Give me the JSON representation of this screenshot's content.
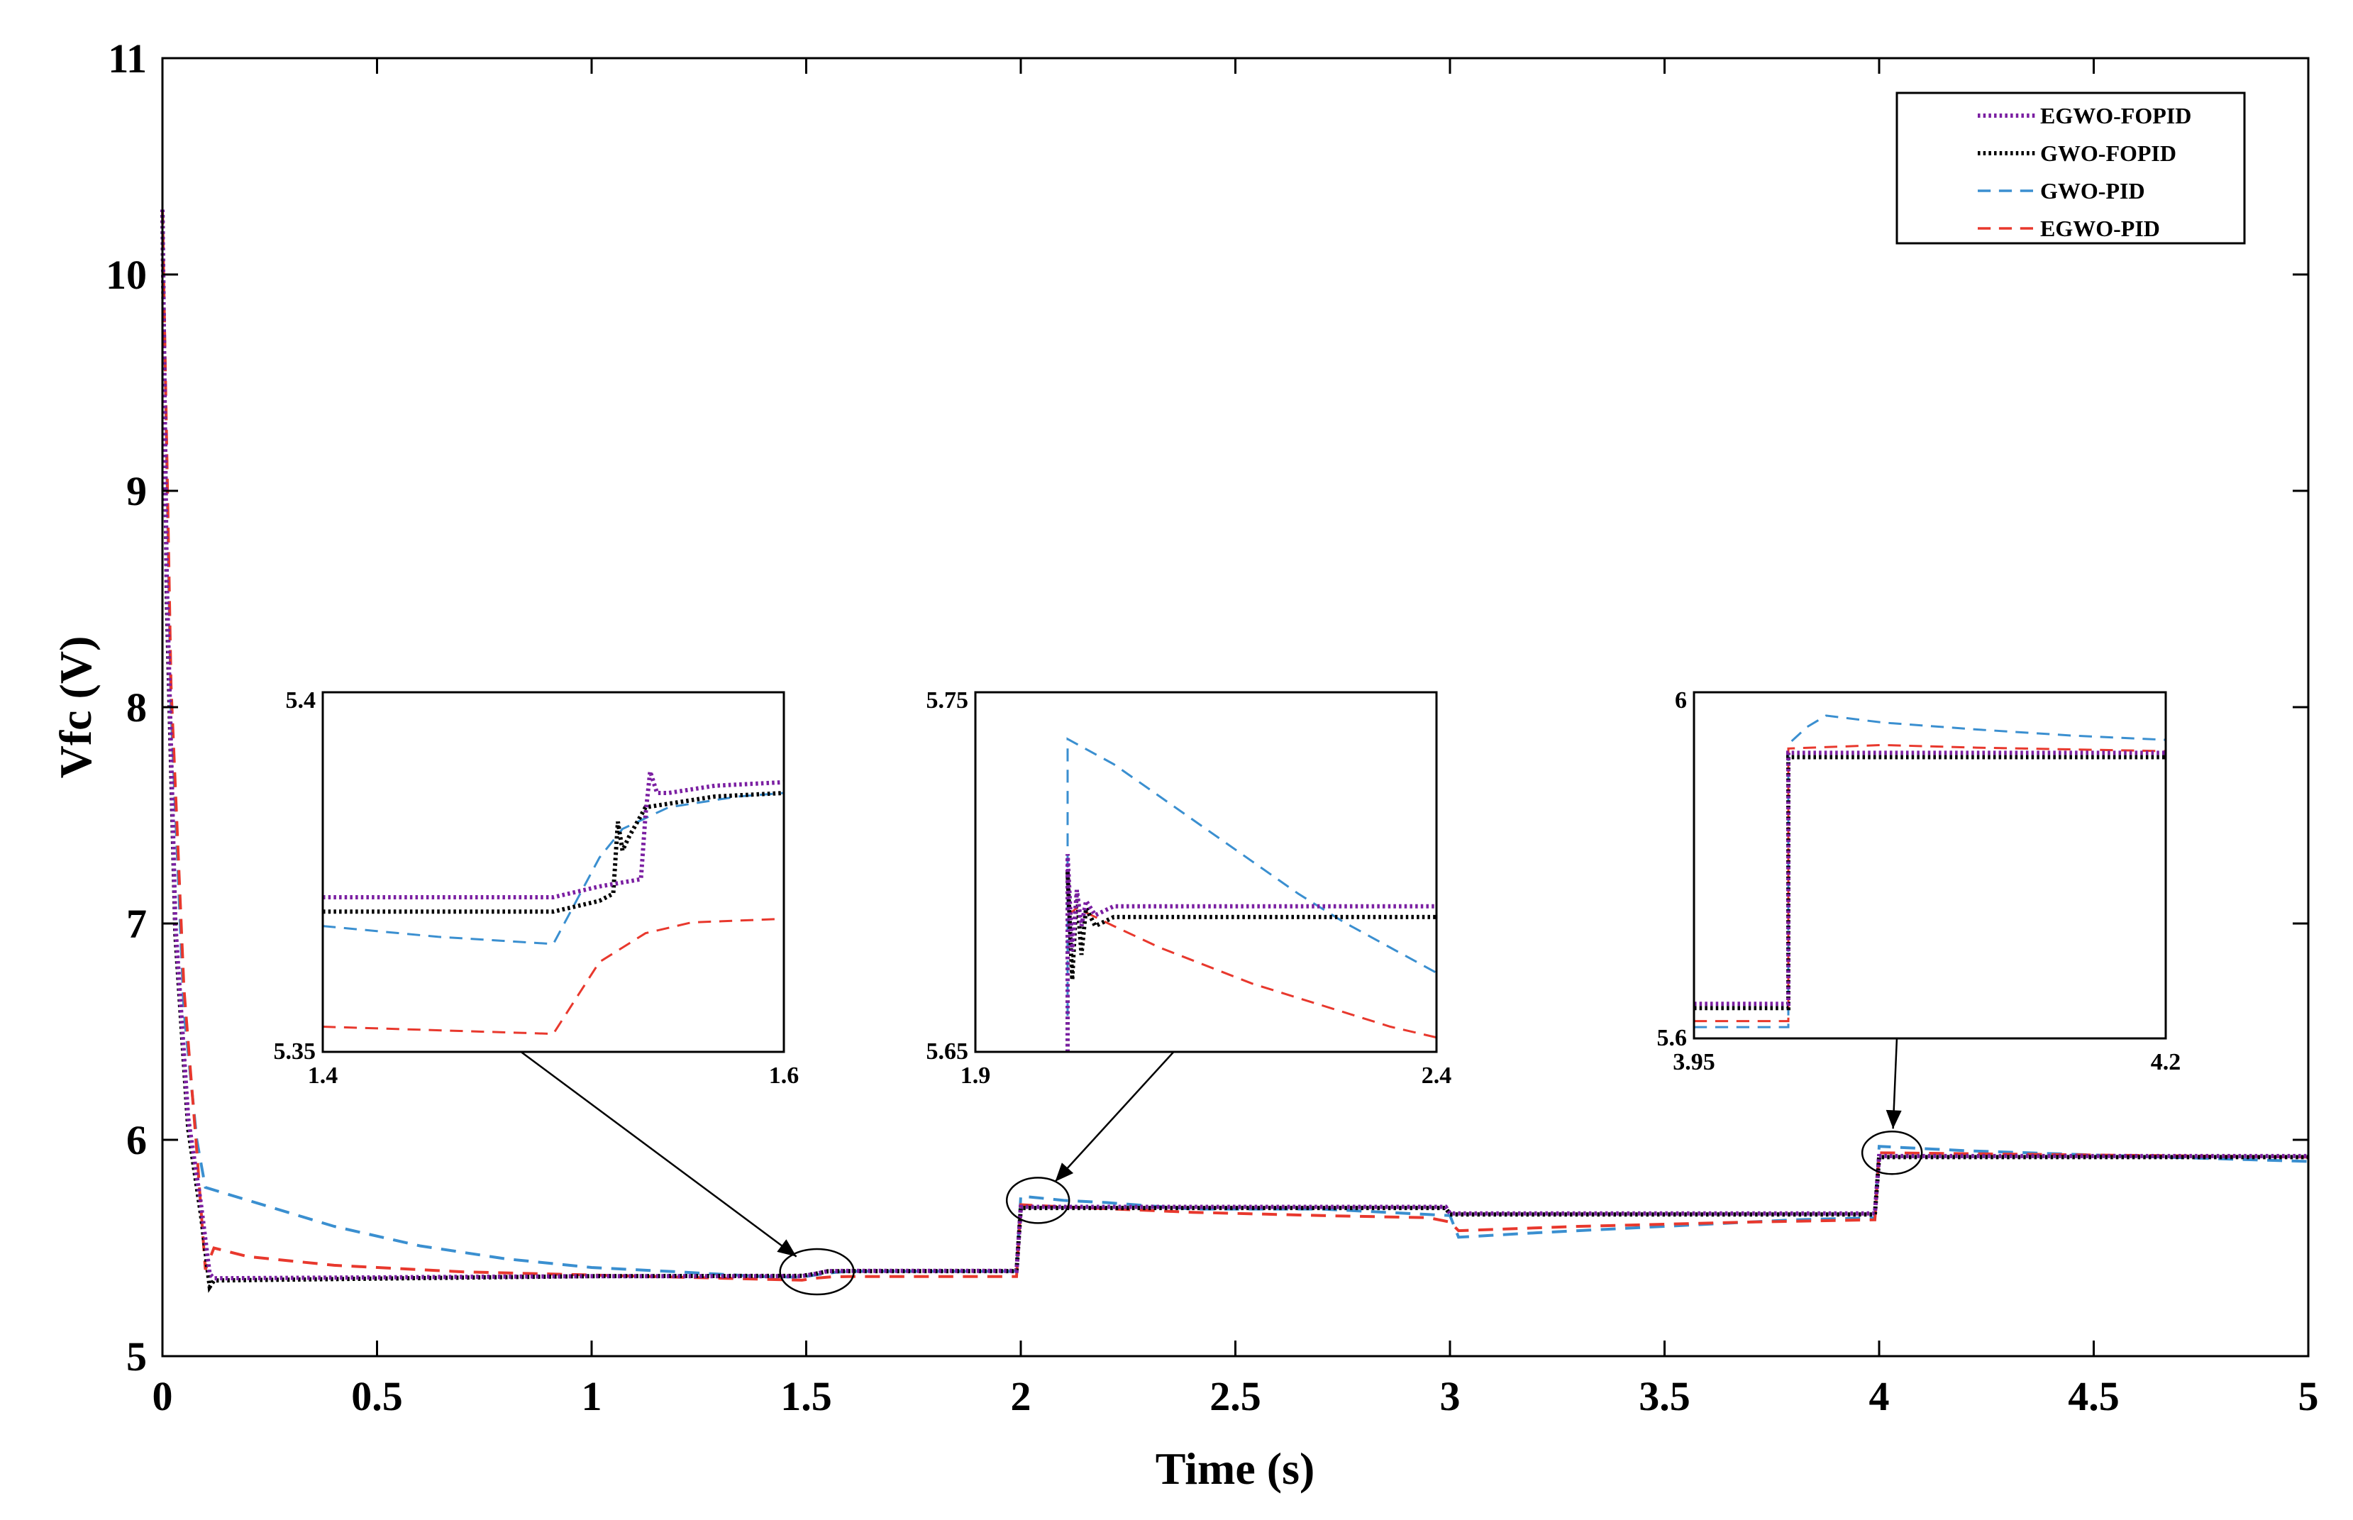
{
  "chart_data": {
    "type": "line",
    "title": "",
    "xlabel": "Time (s)",
    "ylabel": "Vfc (V)",
    "xlim": [
      0,
      5
    ],
    "ylim": [
      5,
      11
    ],
    "xticks": [
      0,
      0.5,
      1,
      1.5,
      2,
      2.5,
      3,
      3.5,
      4,
      4.5,
      5
    ],
    "xtick_labels": [
      "0",
      "0.5",
      "1",
      "1.5",
      "2",
      "2.5",
      "3",
      "3.5",
      "4",
      "4.5",
      "5"
    ],
    "yticks": [
      5,
      6,
      7,
      8,
      9,
      10,
      11
    ],
    "ytick_labels": [
      "5",
      "6",
      "7",
      "8",
      "9",
      "10",
      "11"
    ],
    "grid": false,
    "legend_position": "top-right",
    "series": [
      {
        "name": "EGWO-FOPID",
        "color": "#7b1fa2",
        "style": "dotted",
        "points": [
          [
            0,
            10.3
          ],
          [
            0.01,
            8.6
          ],
          [
            0.03,
            7.0
          ],
          [
            0.06,
            6.1
          ],
          [
            0.09,
            5.7
          ],
          [
            0.11,
            5.38
          ],
          [
            0.12,
            5.36
          ],
          [
            1.0,
            5.37
          ],
          [
            1.49,
            5.37
          ],
          [
            1.52,
            5.38
          ],
          [
            1.55,
            5.393
          ],
          [
            1.6,
            5.394
          ],
          [
            1.99,
            5.394
          ],
          [
            2.0,
            5.69
          ],
          [
            2.01,
            5.69
          ],
          [
            2.5,
            5.69
          ],
          [
            2.99,
            5.69
          ],
          [
            3.0,
            5.66
          ],
          [
            3.99,
            5.66
          ],
          [
            4.0,
            5.925
          ],
          [
            5.0,
            5.925
          ]
        ]
      },
      {
        "name": "GWO-FOPID",
        "color": "#000000",
        "style": "dotted",
        "points": [
          [
            0,
            10.3
          ],
          [
            0.01,
            8.5
          ],
          [
            0.03,
            6.95
          ],
          [
            0.06,
            6.05
          ],
          [
            0.09,
            5.65
          ],
          [
            0.11,
            5.32
          ],
          [
            0.12,
            5.35
          ],
          [
            1.0,
            5.37
          ],
          [
            1.49,
            5.371
          ],
          [
            1.52,
            5.38
          ],
          [
            1.55,
            5.392
          ],
          [
            1.6,
            5.393
          ],
          [
            1.99,
            5.393
          ],
          [
            2.0,
            5.685
          ],
          [
            2.5,
            5.685
          ],
          [
            2.99,
            5.685
          ],
          [
            3.0,
            5.655
          ],
          [
            3.99,
            5.655
          ],
          [
            4.0,
            5.92
          ],
          [
            5.0,
            5.92
          ]
        ]
      },
      {
        "name": "GWO-PID",
        "color": "#3a8fd0",
        "style": "dashed",
        "points": [
          [
            0,
            10.3
          ],
          [
            0.02,
            8.0
          ],
          [
            0.05,
            6.6
          ],
          [
            0.08,
            6.0
          ],
          [
            0.1,
            5.78
          ],
          [
            0.2,
            5.72
          ],
          [
            0.4,
            5.6
          ],
          [
            0.6,
            5.51
          ],
          [
            0.8,
            5.45
          ],
          [
            1.0,
            5.41
          ],
          [
            1.2,
            5.39
          ],
          [
            1.4,
            5.368
          ],
          [
            1.49,
            5.365
          ],
          [
            1.53,
            5.378
          ],
          [
            1.57,
            5.388
          ],
          [
            1.6,
            5.392
          ],
          [
            1.99,
            5.392
          ],
          [
            2.0,
            5.74
          ],
          [
            2.1,
            5.72
          ],
          [
            2.2,
            5.71
          ],
          [
            2.4,
            5.68
          ],
          [
            2.7,
            5.68
          ],
          [
            3.0,
            5.65
          ],
          [
            3.02,
            5.55
          ],
          [
            3.2,
            5.57
          ],
          [
            3.5,
            5.6
          ],
          [
            3.8,
            5.63
          ],
          [
            3.99,
            5.64
          ],
          [
            4.0,
            5.97
          ],
          [
            4.2,
            5.95
          ],
          [
            4.5,
            5.93
          ],
          [
            5.0,
            5.9
          ]
        ]
      },
      {
        "name": "EGWO-PID",
        "color": "#e8382d",
        "style": "dashed",
        "points": [
          [
            0,
            10.3
          ],
          [
            0.02,
            8.1
          ],
          [
            0.05,
            6.7
          ],
          [
            0.08,
            5.95
          ],
          [
            0.1,
            5.4
          ],
          [
            0.12,
            5.5
          ],
          [
            0.2,
            5.46
          ],
          [
            0.4,
            5.42
          ],
          [
            0.7,
            5.39
          ],
          [
            1.0,
            5.375
          ],
          [
            1.49,
            5.351
          ],
          [
            1.52,
            5.36
          ],
          [
            1.56,
            5.367
          ],
          [
            1.6,
            5.368
          ],
          [
            1.99,
            5.368
          ],
          [
            2.0,
            5.7
          ],
          [
            2.1,
            5.69
          ],
          [
            2.4,
            5.665
          ],
          [
            2.7,
            5.65
          ],
          [
            2.95,
            5.64
          ],
          [
            3.0,
            5.62
          ],
          [
            3.02,
            5.58
          ],
          [
            3.3,
            5.6
          ],
          [
            3.7,
            5.62
          ],
          [
            3.99,
            5.63
          ],
          [
            4.0,
            5.94
          ],
          [
            4.5,
            5.93
          ],
          [
            5.0,
            5.92
          ]
        ]
      }
    ],
    "insets": [
      {
        "xlim": [
          1.4,
          1.6
        ],
        "ylim": [
          5.35,
          5.4
        ],
        "xtick_labels": [
          "1.4",
          "1.6"
        ],
        "ytick_labels": [
          "5.35",
          "5.4"
        ],
        "source": {
          "x": 1.525,
          "y": 5.39
        },
        "series": [
          {
            "name": "EGWO-FOPID",
            "points": [
              [
                1.4,
                5.3715
              ],
              [
                1.5,
                5.3715
              ],
              [
                1.52,
                5.373
              ],
              [
                1.538,
                5.374
              ],
              [
                1.54,
                5.383
              ],
              [
                1.542,
                5.389
              ],
              [
                1.545,
                5.386
              ],
              [
                1.55,
                5.386
              ],
              [
                1.57,
                5.387
              ],
              [
                1.6,
                5.3875
              ]
            ]
          },
          {
            "name": "GWO-FOPID",
            "points": [
              [
                1.4,
                5.3695
              ],
              [
                1.5,
                5.3695
              ],
              [
                1.52,
                5.371
              ],
              [
                1.526,
                5.372
              ],
              [
                1.528,
                5.382
              ],
              [
                1.53,
                5.378
              ],
              [
                1.533,
                5.38
              ],
              [
                1.54,
                5.384
              ],
              [
                1.57,
                5.3855
              ],
              [
                1.6,
                5.386
              ]
            ]
          },
          {
            "name": "GWO-PID",
            "points": [
              [
                1.4,
                5.3675
              ],
              [
                1.45,
                5.366
              ],
              [
                1.5,
                5.365
              ],
              [
                1.51,
                5.371
              ],
              [
                1.52,
                5.377
              ],
              [
                1.53,
                5.381
              ],
              [
                1.55,
                5.384
              ],
              [
                1.58,
                5.3855
              ],
              [
                1.6,
                5.386
              ]
            ]
          },
          {
            "name": "EGWO-PID",
            "points": [
              [
                1.4,
                5.3535
              ],
              [
                1.5,
                5.3525
              ],
              [
                1.51,
                5.3575
              ],
              [
                1.52,
                5.3625
              ],
              [
                1.54,
                5.3665
              ],
              [
                1.56,
                5.368
              ],
              [
                1.6,
                5.3685
              ]
            ]
          }
        ]
      },
      {
        "xlim": [
          1.9,
          2.4
        ],
        "ylim": [
          5.65,
          5.75
        ],
        "xtick_labels": [
          "1.9",
          "2.4"
        ],
        "ytick_labels": [
          "5.65",
          "5.75"
        ],
        "source": {
          "x": 2.04,
          "y": 5.72
        },
        "series": [
          {
            "name": "EGWO-FOPID",
            "points": [
              [
                2.0,
                5.65
              ],
              [
                2.0,
                5.705
              ],
              [
                2.005,
                5.678
              ],
              [
                2.01,
                5.695
              ],
              [
                2.015,
                5.685
              ],
              [
                2.02,
                5.692
              ],
              [
                2.03,
                5.688
              ],
              [
                2.05,
                5.6905
              ],
              [
                2.4,
                5.6905
              ]
            ]
          },
          {
            "name": "GWO-FOPID",
            "points": [
              [
                2.0,
                5.65
              ],
              [
                2.0,
                5.7
              ],
              [
                2.005,
                5.67
              ],
              [
                2.01,
                5.695
              ],
              [
                2.015,
                5.677
              ],
              [
                2.02,
                5.69
              ],
              [
                2.03,
                5.685
              ],
              [
                2.05,
                5.6875
              ],
              [
                2.4,
                5.6875
              ]
            ]
          },
          {
            "name": "GWO-PID",
            "points": [
              [
                2.0,
                5.66
              ],
              [
                2.0,
                5.737
              ],
              [
                2.05,
                5.73
              ],
              [
                2.1,
                5.721
              ],
              [
                2.15,
                5.712
              ],
              [
                2.2,
                5.703
              ],
              [
                2.25,
                5.694
              ],
              [
                2.3,
                5.686
              ],
              [
                2.35,
                5.679
              ],
              [
                2.4,
                5.672
              ]
            ]
          },
          {
            "name": "EGWO-PID",
            "points": [
              [
                2.0,
                5.688
              ],
              [
                2.01,
                5.69
              ],
              [
                2.05,
                5.685
              ],
              [
                2.1,
                5.679
              ],
              [
                2.15,
                5.674
              ],
              [
                2.2,
                5.669
              ],
              [
                2.25,
                5.665
              ],
              [
                2.3,
                5.661
              ],
              [
                2.35,
                5.657
              ],
              [
                2.4,
                5.654
              ]
            ]
          }
        ]
      },
      {
        "xlim": [
          3.95,
          4.2
        ],
        "ylim": [
          5.6,
          6.0
        ],
        "xtick_labels": [
          "3.95",
          "4.2"
        ],
        "ytick_labels": [
          "5.6",
          "6"
        ],
        "source": {
          "x": 4.03,
          "y": 5.94
        },
        "series": [
          {
            "name": "EGWO-FOPID",
            "points": [
              [
                3.95,
                5.64
              ],
              [
                4.0,
                5.64
              ],
              [
                4.0,
                5.93
              ],
              [
                4.2,
                5.93
              ]
            ]
          },
          {
            "name": "GWO-FOPID",
            "points": [
              [
                3.95,
                5.635
              ],
              [
                4.0,
                5.635
              ],
              [
                4.0,
                5.925
              ],
              [
                4.2,
                5.925
              ]
            ]
          },
          {
            "name": "GWO-PID",
            "points": [
              [
                3.95,
                5.613
              ],
              [
                4.0,
                5.613
              ],
              [
                4.0,
                5.94
              ],
              [
                4.01,
                5.96
              ],
              [
                4.02,
                5.973
              ],
              [
                4.05,
                5.965
              ],
              [
                4.1,
                5.957
              ],
              [
                4.15,
                5.95
              ],
              [
                4.2,
                5.945
              ]
            ]
          },
          {
            "name": "EGWO-PID",
            "points": [
              [
                3.95,
                5.62
              ],
              [
                4.0,
                5.62
              ],
              [
                4.0,
                5.935
              ],
              [
                4.05,
                5.939
              ],
              [
                4.1,
                5.936
              ],
              [
                4.2,
                5.932
              ]
            ]
          }
        ]
      }
    ]
  }
}
